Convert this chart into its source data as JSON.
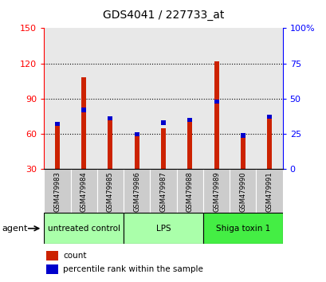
{
  "title": "GDS4041 / 227733_at",
  "samples": [
    "GSM479983",
    "GSM479984",
    "GSM479985",
    "GSM479986",
    "GSM479987",
    "GSM479988",
    "GSM479989",
    "GSM479990",
    "GSM479991"
  ],
  "counts": [
    67,
    108,
    73,
    60,
    65,
    73,
    122,
    57,
    73
  ],
  "percentiles": [
    32,
    42,
    36,
    25,
    33,
    35,
    48,
    24,
    37
  ],
  "ylim_left": [
    30,
    150
  ],
  "ylim_right": [
    0,
    100
  ],
  "yticks_left": [
    30,
    60,
    90,
    120,
    150
  ],
  "yticks_right": [
    0,
    25,
    50,
    75,
    100
  ],
  "ytick_labels_right": [
    "0",
    "25",
    "50",
    "75",
    "100%"
  ],
  "bar_color_red": "#cc2200",
  "bar_color_blue": "#0000cc",
  "bar_width": 0.18,
  "blue_bar_height": 3.5,
  "agent_label": "agent",
  "legend_count": "count",
  "legend_percentile": "percentile rank within the sample",
  "group_defs": [
    {
      "start": 0,
      "end": 2,
      "label": "untreated control",
      "color": "#aaffaa"
    },
    {
      "start": 3,
      "end": 5,
      "label": "LPS",
      "color": "#aaffaa"
    },
    {
      "start": 6,
      "end": 8,
      "label": "Shiga toxin 1",
      "color": "#44ee44"
    }
  ],
  "sample_bg_color": "#cccccc",
  "grid_lines": [
    60,
    90,
    120
  ],
  "plot_bg": "#ffffff"
}
